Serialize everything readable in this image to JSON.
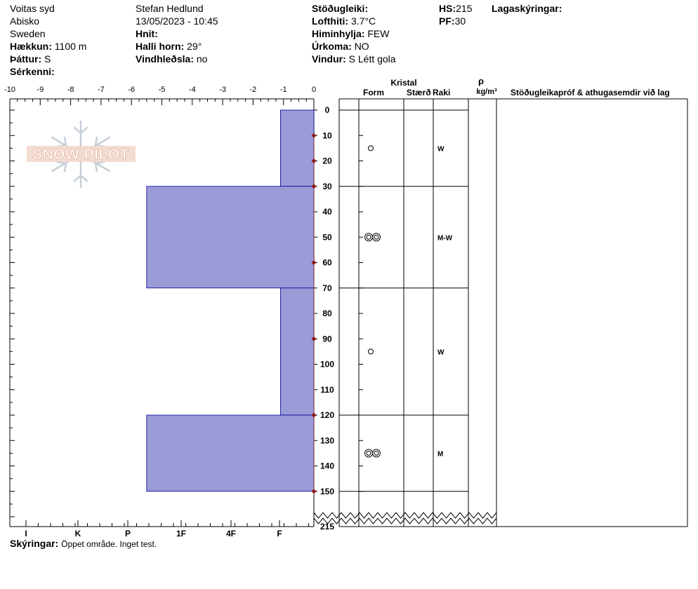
{
  "header": {
    "location": {
      "name": "Voitas syd",
      "area": "Abisko",
      "country": "Sweden"
    },
    "elevation_label": "Hækkun:",
    "elevation_value": "1100 m",
    "aspect_label": "Þáttur:",
    "aspect_value": "S",
    "specifics_label": "Sérkenni:",
    "observer": "Stefan Hedlund",
    "datetime": "13/05/2023 - 10:45",
    "coords_label": "Hnit:",
    "slope_label": "Halli horn:",
    "slope_value": "29°",
    "wind_loading_label": "Vindhleðsla:",
    "wind_loading_value": "no",
    "stability_label": "Stöðugleiki:",
    "air_temp_label": "Lofthiti:",
    "air_temp_value": "3.7°C",
    "sky_label": "Himinhylja:",
    "sky_value": "FEW",
    "precip_label": "Úrkoma:",
    "precip_value": "NO",
    "wind_label": "Vindur:",
    "wind_value": "S Létt gola",
    "hs_label": "HS:",
    "hs_value": "215",
    "pf_label": "PF:",
    "pf_value": "30",
    "layer_notes_label": "Lagaskýringar:"
  },
  "footer": {
    "notes_label": "Skýringar:",
    "notes_value": "Öppet område.  Inget test."
  },
  "logo": {
    "text": "SNOW PILOT"
  },
  "table_headers": {
    "crystal": "Kristal",
    "form": "Form",
    "size": "Stærð",
    "moisture": "Raki",
    "density_symbol": "ρ",
    "density_unit": "kg/m³",
    "tests": "Stöðugleikapróf & athugasemdir við lag"
  },
  "chart_data": {
    "type": "bar",
    "description_free": true,
    "temp_axis": {
      "ticks": [
        "-10",
        "-9",
        "-8",
        "-7",
        "-6",
        "-5",
        "-4",
        "-3",
        "-2",
        "-1",
        "0"
      ],
      "range": [
        -10,
        0
      ]
    },
    "hardness_axis": {
      "labels": [
        "I",
        "K",
        "P",
        "1F",
        "4F",
        "F"
      ],
      "values": [
        4.5,
        3,
        1.5,
        0,
        -1.5,
        -3
      ]
    },
    "depth_axis": {
      "ticks": [
        "0",
        "10",
        "20",
        "30",
        "40",
        "50",
        "60",
        "70",
        "80",
        "90",
        "100",
        "110",
        "120",
        "130",
        "140",
        "150"
      ],
      "bottom_label": "215",
      "range": [
        0,
        150
      ]
    },
    "temperature_points": [
      {
        "depth": 10,
        "temp": 0
      },
      {
        "depth": 20,
        "temp": 0
      },
      {
        "depth": 30,
        "temp": 0
      },
      {
        "depth": 60,
        "temp": 0
      },
      {
        "depth": 90,
        "temp": 0
      },
      {
        "depth": 120,
        "temp": 0
      },
      {
        "depth": 150,
        "temp": 0
      }
    ],
    "layers": [
      {
        "top": 0,
        "bottom": 30,
        "hardness_width": 1.1,
        "form": "round",
        "moisture": "W",
        "form_y": 15
      },
      {
        "top": 30,
        "bottom": 70,
        "hardness_width": 5.5,
        "form": "double-circle",
        "moisture": "M-W",
        "form_y": 50
      },
      {
        "top": 70,
        "bottom": 120,
        "hardness_width": 1.1,
        "form": "round",
        "moisture": "W",
        "form_y": 95
      },
      {
        "top": 120,
        "bottom": 150,
        "hardness_width": 5.5,
        "form": "double-circle",
        "moisture": "M",
        "form_y": 135
      }
    ],
    "colors": {
      "bar": "#9b9bd7",
      "bar_edge": "#00009b",
      "temp_point": "#8b1a1a"
    }
  }
}
